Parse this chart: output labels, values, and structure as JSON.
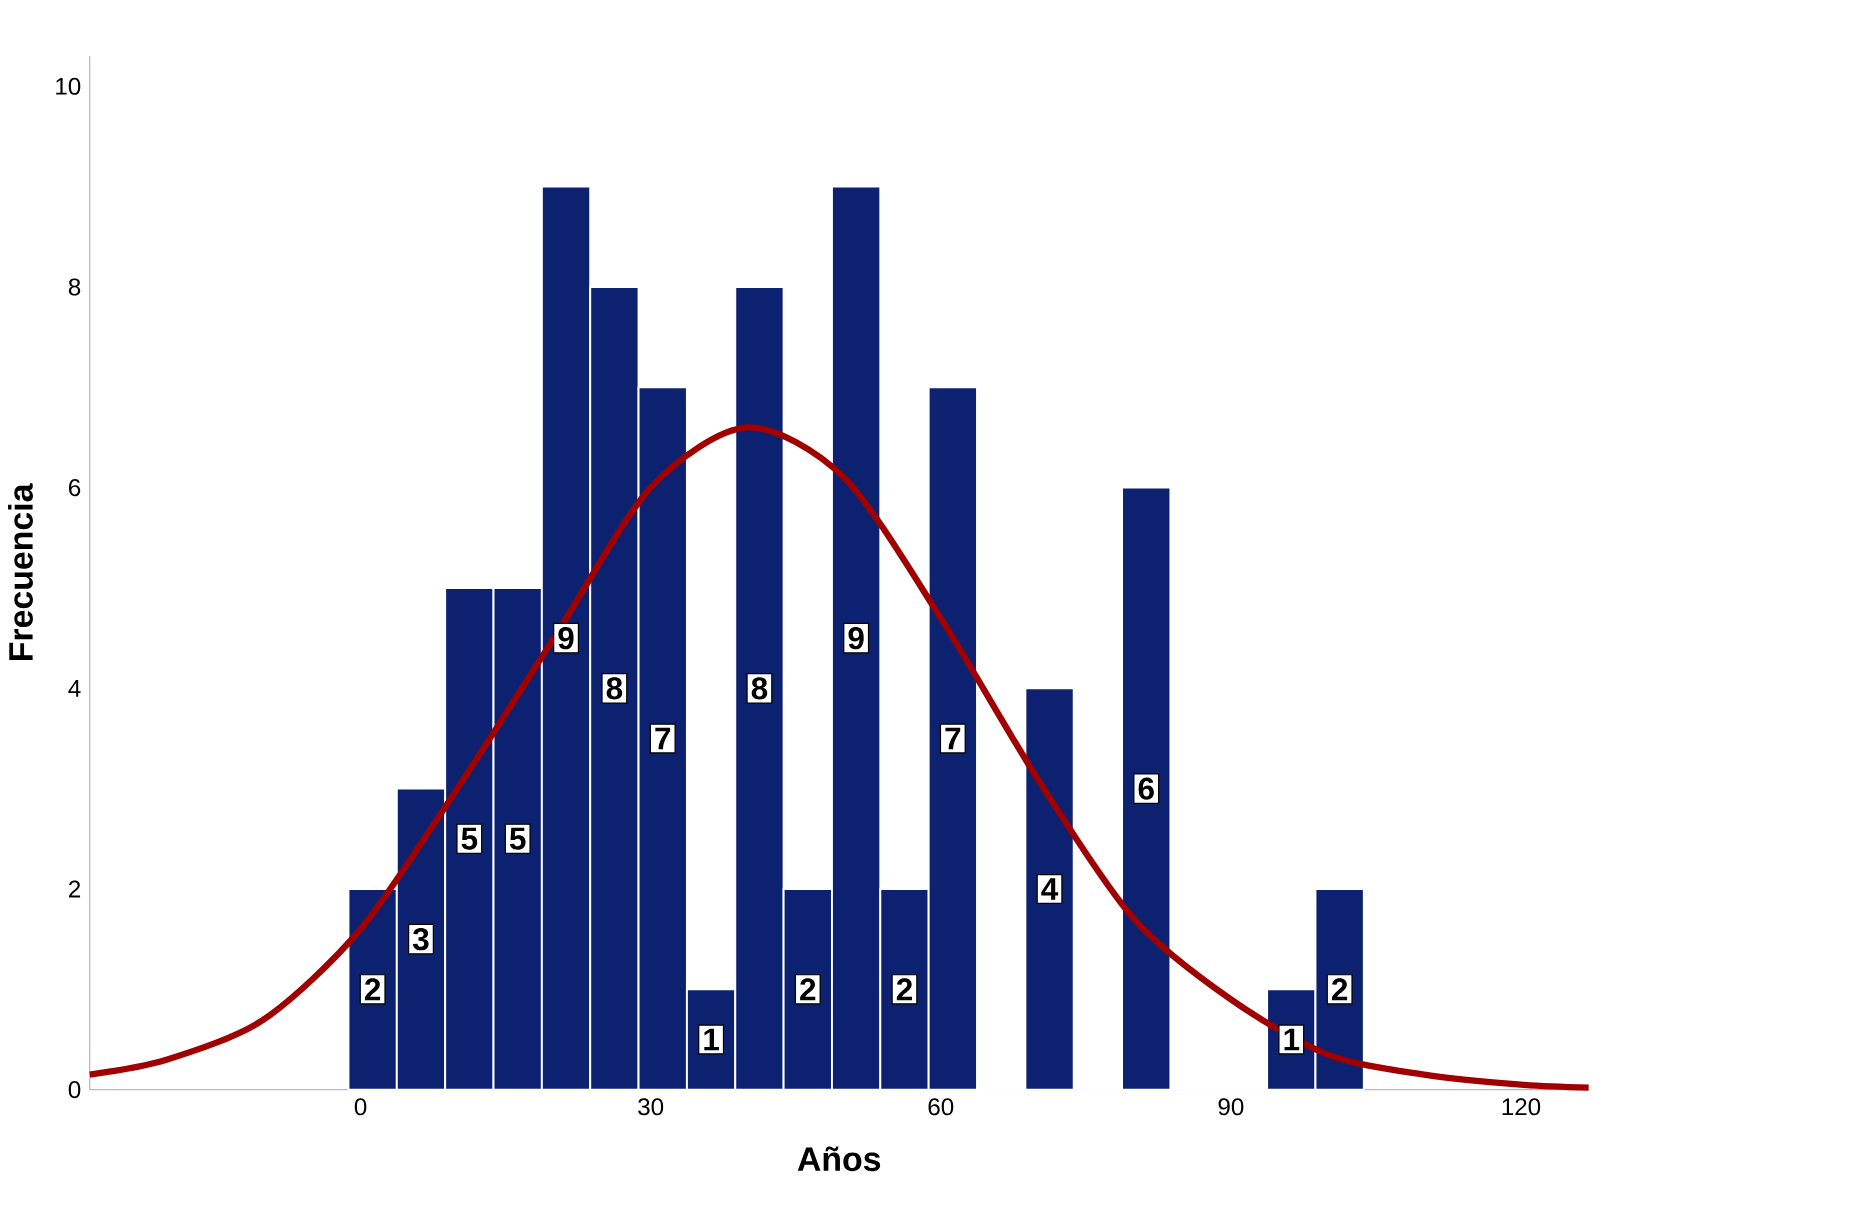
{
  "chart_data": {
    "type": "histogram",
    "xlabel": "Años",
    "ylabel": "Frecuencia",
    "bins": [
      -1.25,
      3.75,
      8.75,
      13.75,
      18.75,
      23.75,
      28.75,
      33.75,
      38.75,
      43.75,
      48.75,
      53.75,
      58.75,
      63.75,
      68.75,
      73.75,
      78.75,
      83.75,
      88.75,
      93.75,
      98.75,
      103.75
    ],
    "values": [
      2,
      3,
      5,
      5,
      9,
      8,
      7,
      1,
      8,
      2,
      9,
      2,
      7,
      0,
      4,
      0,
      6,
      0,
      0,
      1,
      2
    ],
    "value_labels": [
      "2",
      "3",
      "5",
      "5",
      "9",
      "8",
      "7",
      "1",
      "8",
      "2",
      "9",
      "2",
      "7",
      null,
      "4",
      null,
      "6",
      null,
      null,
      "1",
      "2"
    ],
    "color": "#0c2270",
    "series": [
      {
        "type": "line",
        "color": "#a00000",
        "x": [
          -28,
          -20,
          -10,
          0,
          10,
          20,
          30,
          40,
          50,
          60,
          70,
          80,
          90,
          100,
          110,
          120,
          127
        ],
        "values": [
          0.15,
          0.3,
          0.7,
          1.6,
          3.0,
          4.5,
          6.0,
          6.6,
          6.1,
          4.7,
          3.1,
          1.7,
          0.9,
          0.35,
          0.15,
          0.05,
          0.02
        ]
      }
    ],
    "xlim": [
      -28,
      127
    ],
    "ylim": [
      0,
      10.3
    ],
    "xticks": [
      0,
      30,
      60,
      90,
      120
    ],
    "yticks": [
      0,
      2,
      4,
      6,
      8,
      10
    ],
    "grid": false
  }
}
